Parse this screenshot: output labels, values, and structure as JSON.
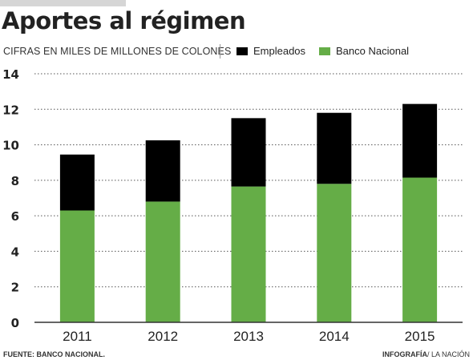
{
  "title": "Aportes al régimen",
  "subtitle": "CIFRAS EN MILES DE MILLONES DE COLONES",
  "source": "FUENTE: BANCO NACIONAL.",
  "credit": {
    "bold": "INFOGRAFÍA",
    "rest": "/ LA NACIÓN"
  },
  "colors": {
    "Empleados": "#000000",
    "Banco Nacional": "#65ad47"
  },
  "chart_data": {
    "type": "bar",
    "stacked": true,
    "title": "Aportes al régimen",
    "subtitle": "CIFRAS EN MILES DE MILLONES DE COLONES",
    "categories": [
      "2011",
      "2012",
      "2013",
      "2014",
      "2015"
    ],
    "series": [
      {
        "name": "Banco Nacional",
        "values": [
          6.3,
          6.8,
          7.65,
          7.8,
          8.15
        ]
      },
      {
        "name": "Empleados",
        "values": [
          3.15,
          3.45,
          3.85,
          4.0,
          4.15
        ]
      }
    ],
    "legend": [
      "Empleados",
      "Banco Nacional"
    ],
    "legend_position": "top",
    "ylim": [
      0,
      14
    ],
    "yticks": [
      0,
      2,
      4,
      6,
      8,
      10,
      12,
      14
    ],
    "grid": "horizontal dotted"
  }
}
